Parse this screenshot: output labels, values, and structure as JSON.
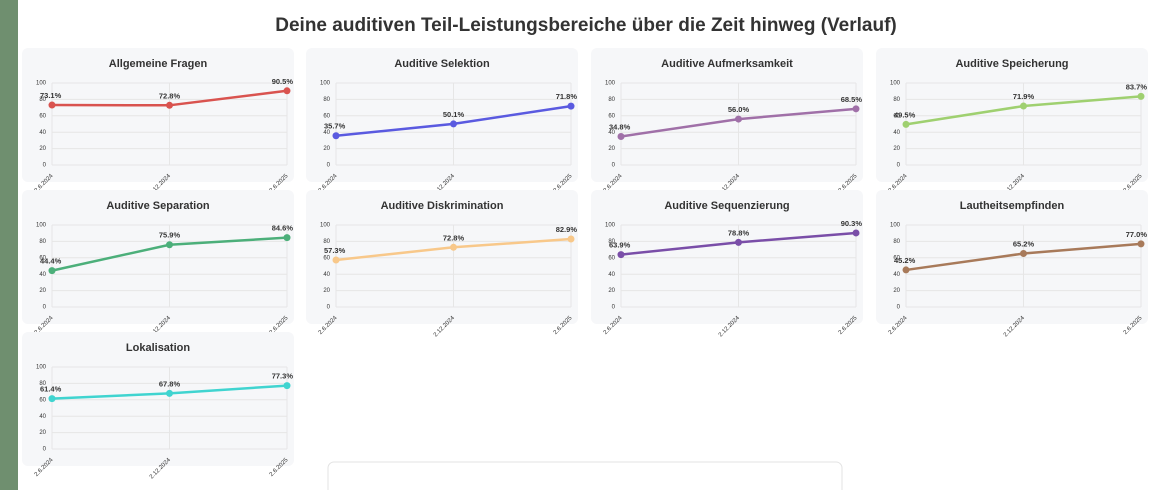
{
  "title": "Deine auditiven Teil-Leistungsbereiche über die Zeit hinweg (Verlauf)",
  "chart_data": [
    {
      "type": "line",
      "title": "Allgemeine Fragen",
      "categories": [
        "2.6.2024",
        "2.12.2024",
        "2.6.2025"
      ],
      "values": [
        73.1,
        72.8,
        90.5
      ],
      "value_labels": [
        "73.1%",
        "72.8%",
        "90.5%"
      ],
      "color": "#d9534f",
      "ylim": [
        0,
        100
      ],
      "yticks": [
        0,
        20,
        40,
        60,
        80,
        100
      ],
      "grid": true
    },
    {
      "type": "line",
      "title": "Auditive Selektion",
      "categories": [
        "2.6.2024",
        "2.12.2024",
        "2.6.2025"
      ],
      "values": [
        35.7,
        50.1,
        71.8
      ],
      "value_labels": [
        "35.7%",
        "50.1%",
        "71.8%"
      ],
      "color": "#5a5ae0",
      "ylim": [
        0,
        100
      ],
      "yticks": [
        0,
        20,
        40,
        60,
        80,
        100
      ],
      "grid": true
    },
    {
      "type": "line",
      "title": "Auditive Aufmerksamkeit",
      "categories": [
        "2.6.2024",
        "2.12.2024",
        "2.6.2025"
      ],
      "values": [
        34.8,
        56,
        68.5
      ],
      "value_labels": [
        "34.8%",
        "56.0%",
        "68.5%"
      ],
      "color": "#a070a8",
      "ylim": [
        0,
        100
      ],
      "yticks": [
        0,
        20,
        40,
        60,
        80,
        100
      ],
      "grid": true
    },
    {
      "type": "line",
      "title": "Auditive Speicherung",
      "categories": [
        "2.6.2024",
        "2.12.2024",
        "2.6.2025"
      ],
      "values": [
        49.5,
        71.9,
        83.7
      ],
      "value_labels": [
        "49.5%",
        "71.9%",
        "83.7%"
      ],
      "color": "#9fd070",
      "ylim": [
        0,
        100
      ],
      "yticks": [
        0,
        20,
        40,
        60,
        80,
        100
      ],
      "grid": true
    },
    {
      "type": "line",
      "title": "Auditive Separation",
      "categories": [
        "2.6.2024",
        "2.12.2024",
        "2.6.2025"
      ],
      "values": [
        44.4,
        75.9,
        84.6
      ],
      "value_labels": [
        "44.4%",
        "75.9%",
        "84.6%"
      ],
      "color": "#4caf7a",
      "ylim": [
        0,
        100
      ],
      "yticks": [
        0,
        20,
        40,
        60,
        80,
        100
      ],
      "grid": true
    },
    {
      "type": "line",
      "title": "Auditive Diskrimination",
      "categories": [
        "2.6.2024",
        "2.12.2024",
        "2.6.2025"
      ],
      "values": [
        57.3,
        72.8,
        82.9
      ],
      "value_labels": [
        "57.3%",
        "72.8%",
        "82.9%"
      ],
      "color": "#f8c88a",
      "ylim": [
        0,
        100
      ],
      "yticks": [
        0,
        20,
        40,
        60,
        80,
        100
      ],
      "grid": true
    },
    {
      "type": "line",
      "title": "Auditive Sequenzierung",
      "categories": [
        "2.6.2024",
        "2.12.2024",
        "2.6.2025"
      ],
      "values": [
        63.9,
        78.8,
        90.3
      ],
      "value_labels": [
        "63.9%",
        "78.8%",
        "90.3%"
      ],
      "color": "#7a4ea8",
      "ylim": [
        0,
        100
      ],
      "yticks": [
        0,
        20,
        40,
        60,
        80,
        100
      ],
      "grid": true
    },
    {
      "type": "line",
      "title": "Lautheitsempfinden",
      "categories": [
        "2.6.2024",
        "2.12.2024",
        "2.6.2025"
      ],
      "values": [
        45.2,
        65.2,
        77
      ],
      "value_labels": [
        "45.2%",
        "65.2%",
        "77.0%"
      ],
      "color": "#a87a5a",
      "ylim": [
        0,
        100
      ],
      "yticks": [
        0,
        20,
        40,
        60,
        80,
        100
      ],
      "grid": true
    },
    {
      "type": "line",
      "title": "Lokalisation",
      "categories": [
        "2.6.2024",
        "2.12.2024",
        "2.6.2025"
      ],
      "values": [
        61.4,
        67.8,
        77.3
      ],
      "value_labels": [
        "61.4%",
        "67.8%",
        "77.3%"
      ],
      "color": "#40d4d0",
      "ylim": [
        0,
        100
      ],
      "yticks": [
        0,
        20,
        40,
        60,
        80,
        100
      ],
      "grid": true
    }
  ]
}
